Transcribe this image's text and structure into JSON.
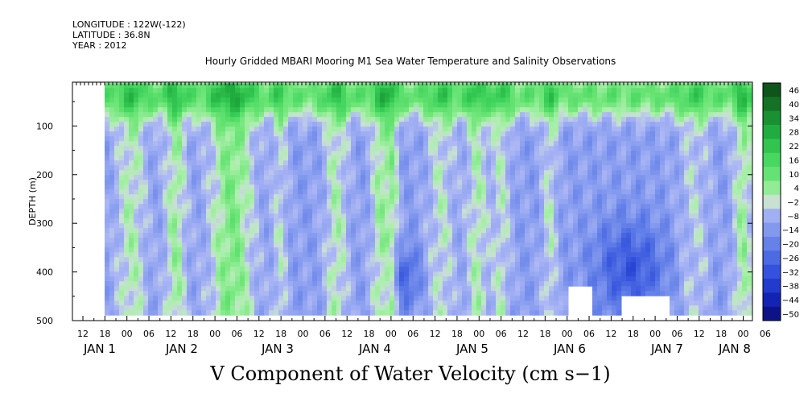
{
  "meta": {
    "longitude": "LONGITUDE : 122W(-122)",
    "latitude": "LATITUDE : 36.8N",
    "year": "YEAR : 2012"
  },
  "chart_data": {
    "type": "heatmap",
    "title": "Hourly Gridded MBARI Mooring M1 Sea Water Temperature and Salinity Observations",
    "main_label": "V Component of Water Velocity (cm s−1)",
    "ylabel": "DEPTH (m)",
    "y_axis": {
      "ticks": [
        100,
        200,
        300,
        400,
        500
      ],
      "range": [
        10,
        500
      ],
      "inverted": true
    },
    "x_axis": {
      "hour_ticks": [
        "12",
        "18",
        "00",
        "06",
        "12",
        "18",
        "00",
        "06",
        "12",
        "18",
        "00",
        "06",
        "12",
        "18",
        "00",
        "06",
        "12",
        "18",
        "00",
        "06",
        "12",
        "18",
        "00",
        "06",
        "12",
        "18",
        "00",
        "06",
        "12",
        "18",
        "00",
        "06"
      ],
      "day_labels": [
        "JAN  1",
        "JAN  2",
        "JAN  3",
        "JAN  4",
        "JAN  5",
        "JAN  6",
        "JAN  7",
        "JAN  8"
      ]
    },
    "colorbar": {
      "labels": [
        "46",
        "40",
        "34",
        "28",
        "22",
        "16",
        "10",
        "4",
        "−2",
        "−8",
        "−14",
        "−20",
        "−26",
        "−32",
        "−38",
        "−44",
        "−50"
      ],
      "range": [
        -50,
        50
      ]
    },
    "grid": false,
    "legend_position": "right"
  }
}
